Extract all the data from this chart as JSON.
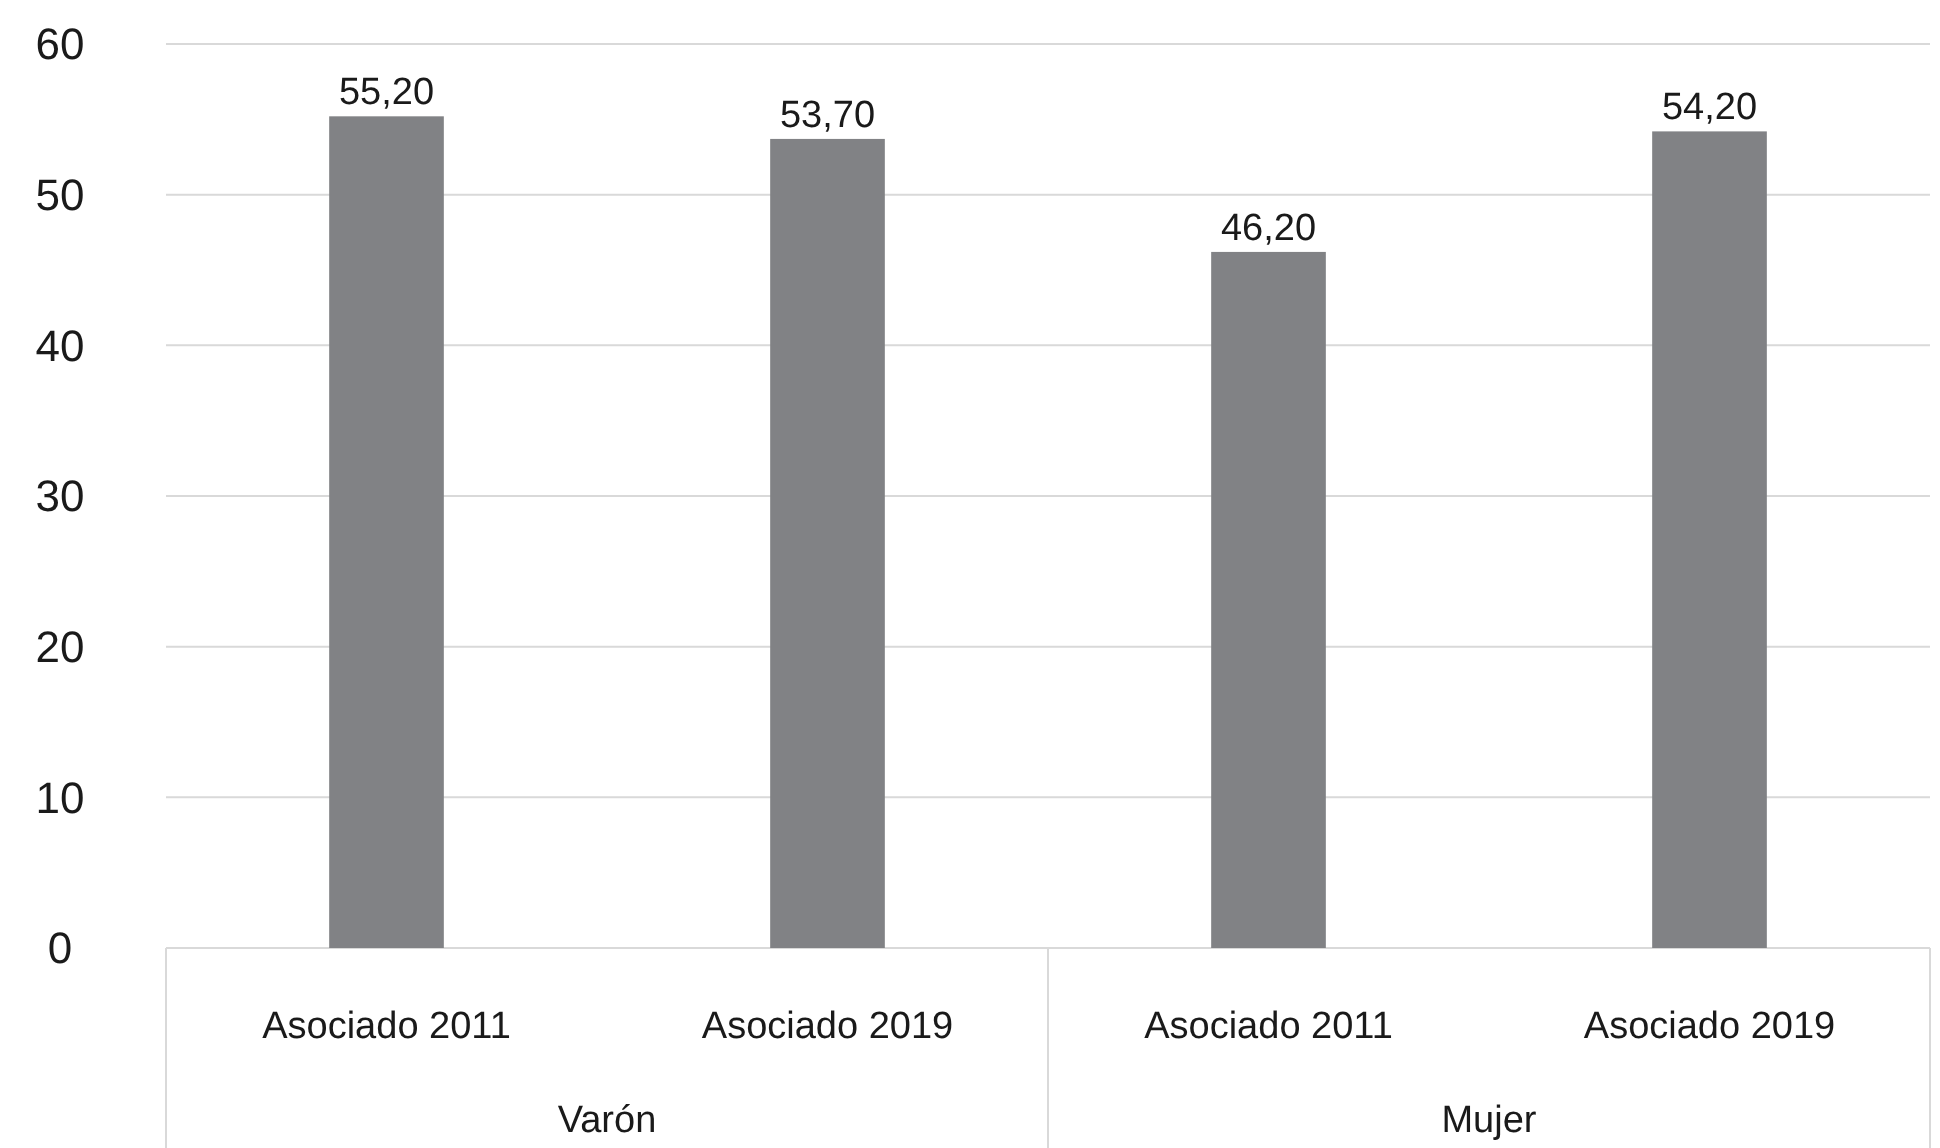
{
  "chart_data": {
    "type": "bar",
    "categories": [
      "Asociado 2011",
      "Asociado 2019",
      "Asociado 2011",
      "Asociado 2019"
    ],
    "values": [
      55.2,
      53.7,
      46.2,
      54.2
    ],
    "value_labels": [
      "55,20",
      "53,70",
      "46,20",
      "54,20"
    ],
    "color": "#818285",
    "ylim": [
      0,
      60
    ],
    "yticks": [
      0,
      10,
      20,
      30,
      40,
      50,
      60
    ],
    "grid": "y",
    "annotations": [
      "Varón",
      "Mujer"
    ]
  }
}
